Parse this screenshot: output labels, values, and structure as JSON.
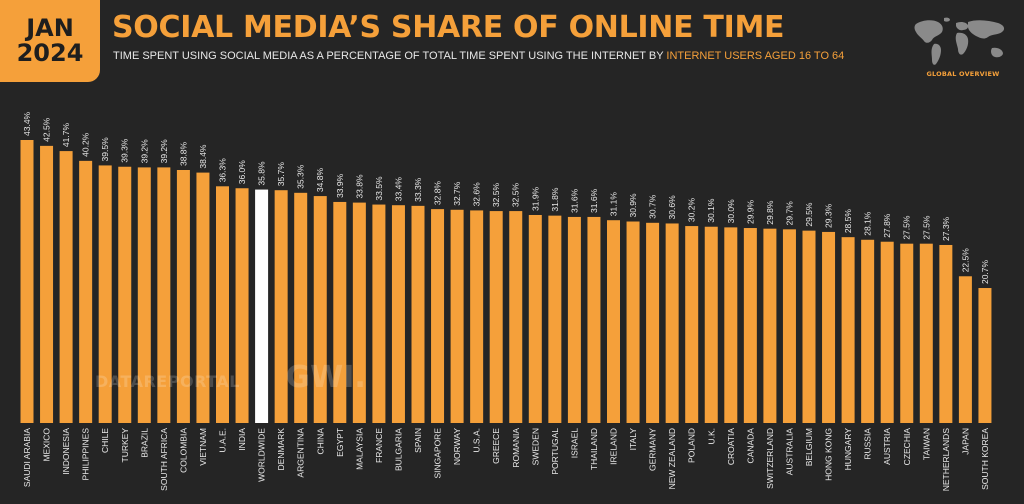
{
  "header": {
    "date_month": "JAN",
    "date_year": "2024",
    "title": "SOCIAL MEDIA’S SHARE OF ONLINE TIME",
    "subtitle_main": "TIME SPENT USING SOCIAL MEDIA AS A PERCENTAGE OF TOTAL TIME SPENT USING THE INTERNET BY ",
    "subtitle_highlight": "INTERNET USERS AGED 16 TO 64",
    "badge_label": "GLOBAL OVERVIEW"
  },
  "watermark": {
    "text_1": "DATAREPORTAL",
    "text_2": "GWI."
  },
  "colors": {
    "background": "#252525",
    "accent": "#f5a03a",
    "highlight_bar": "#ffffff",
    "text": "#e8e8e8"
  },
  "chart_data": {
    "type": "bar",
    "categories": [
      "SAUDI ARABIA",
      "MEXICO",
      "INDONESIA",
      "PHILIPPINES",
      "CHILE",
      "TURKEY",
      "BRAZIL",
      "SOUTH AFRICA",
      "COLOMBIA",
      "VIETNAM",
      "U.A.E.",
      "INDIA",
      "WORLDWIDE",
      "DENMARK",
      "ARGENTINA",
      "CHINA",
      "EGYPT",
      "MALAYSIA",
      "FRANCE",
      "BULGARIA",
      "SPAIN",
      "SINGAPORE",
      "NORWAY",
      "U.S.A.",
      "GREECE",
      "ROMANIA",
      "SWEDEN",
      "PORTUGAL",
      "ISRAEL",
      "THAILAND",
      "IRELAND",
      "ITALY",
      "GERMANY",
      "NEW ZEALAND",
      "POLAND",
      "U.K.",
      "CROATIA",
      "CANADA",
      "SWITZERLAND",
      "AUSTRALIA",
      "BELGIUM",
      "HONG KONG",
      "HUNGARY",
      "RUSSIA",
      "AUSTRIA",
      "CZECHIA",
      "TAIWAN",
      "NETHERLANDS",
      "JAPAN",
      "SOUTH KOREA"
    ],
    "values": [
      43.4,
      42.5,
      41.7,
      40.2,
      39.5,
      39.3,
      39.2,
      39.2,
      38.8,
      38.4,
      36.3,
      36.0,
      35.8,
      35.7,
      35.3,
      34.8,
      33.9,
      33.8,
      33.5,
      33.4,
      33.3,
      32.8,
      32.7,
      32.6,
      32.5,
      32.5,
      31.9,
      31.8,
      31.6,
      31.6,
      31.1,
      30.9,
      30.7,
      30.6,
      30.2,
      30.1,
      30.0,
      29.9,
      29.8,
      29.7,
      29.5,
      29.3,
      28.5,
      28.1,
      27.8,
      27.5,
      27.5,
      27.3,
      22.5,
      20.7
    ],
    "value_labels": [
      "43.4%",
      "42.5%",
      "41.7%",
      "40.2%",
      "39.5%",
      "39.3%",
      "39.2%",
      "39.2%",
      "38.8%",
      "38.4%",
      "36.3%",
      "36.0%",
      "35.8%",
      "35.7%",
      "35.3%",
      "34.8%",
      "33.9%",
      "33.8%",
      "33.5%",
      "33.4%",
      "33.3%",
      "32.8%",
      "32.7%",
      "32.6%",
      "32.5%",
      "32.5%",
      "31.9%",
      "31.8%",
      "31.6%",
      "31.6%",
      "31.1%",
      "30.9%",
      "30.7%",
      "30.6%",
      "30.2%",
      "30.1%",
      "30.0%",
      "29.9%",
      "29.8%",
      "29.7%",
      "29.5%",
      "29.3%",
      "28.5%",
      "28.1%",
      "27.8%",
      "27.5%",
      "27.5%",
      "27.3%",
      "22.5%",
      "20.7%"
    ],
    "highlight_category": "WORLDWIDE",
    "ylim": [
      0,
      43.4
    ],
    "grid": false,
    "legend": "none"
  }
}
